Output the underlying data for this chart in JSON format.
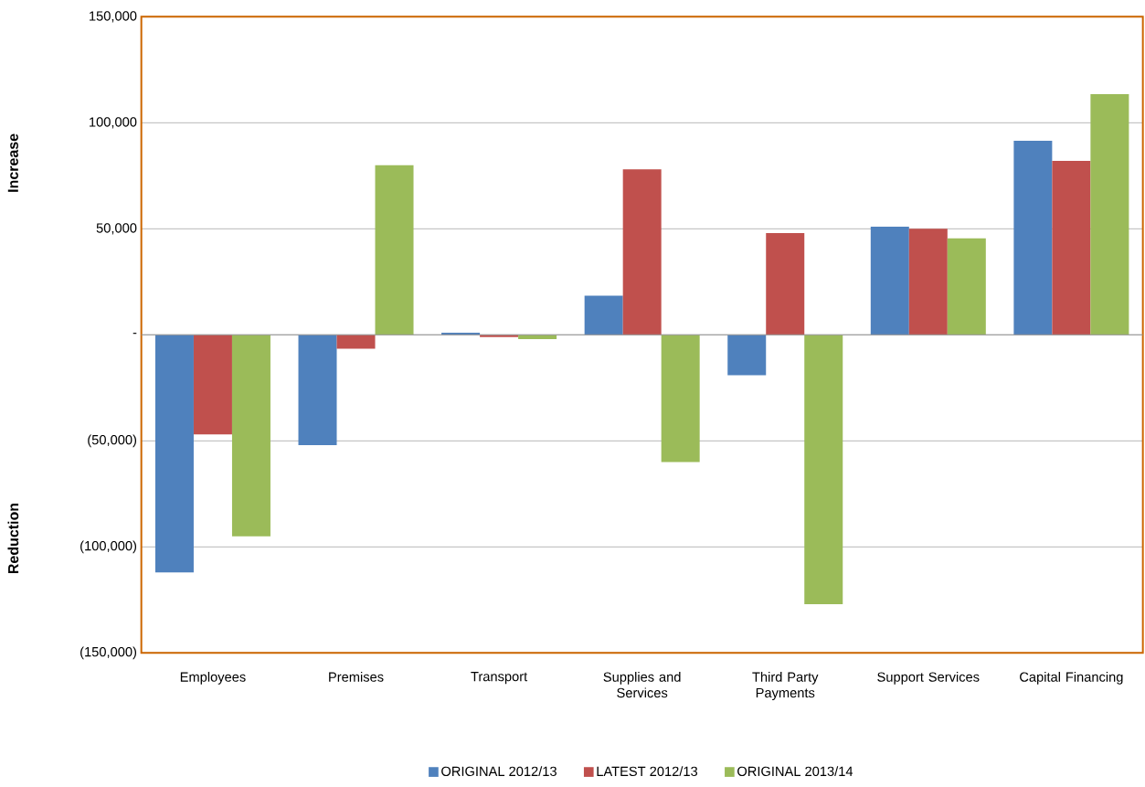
{
  "chart_data": {
    "type": "bar",
    "categories": [
      "Employees",
      "Premises",
      "Transport",
      "Supplies and Services",
      "Third Party Payments",
      "Support Services",
      "Capital Financing"
    ],
    "series": [
      {
        "name": "ORIGINAL 2012/13",
        "color": "#4f81bd",
        "values": [
          -112000,
          -52000,
          1000,
          18500,
          -19000,
          51000,
          91500
        ]
      },
      {
        "name": "LATEST 2012/13",
        "color": "#c0504d",
        "values": [
          -47000,
          -6500,
          -1000,
          78000,
          48000,
          50000,
          82000
        ]
      },
      {
        "name": "ORIGINAL 2013/14",
        "color": "#9bbb59",
        "values": [
          -95000,
          80000,
          -2000,
          -60000,
          -127000,
          45500,
          113500
        ]
      }
    ],
    "ylim": [
      -150000,
      150000
    ],
    "yticks": [
      {
        "value": -150000,
        "label": "(150,000)"
      },
      {
        "value": -100000,
        "label": "(100,000)"
      },
      {
        "value": -50000,
        "label": "(50,000)"
      },
      {
        "value": 0,
        "label": "-"
      },
      {
        "value": 50000,
        "label": "50,000"
      },
      {
        "value": 100000,
        "label": "100,000"
      },
      {
        "value": 150000,
        "label": "150,000"
      }
    ],
    "annotations": [
      "Increase",
      "Reduction"
    ],
    "grid": "y",
    "legend": "bottom"
  }
}
